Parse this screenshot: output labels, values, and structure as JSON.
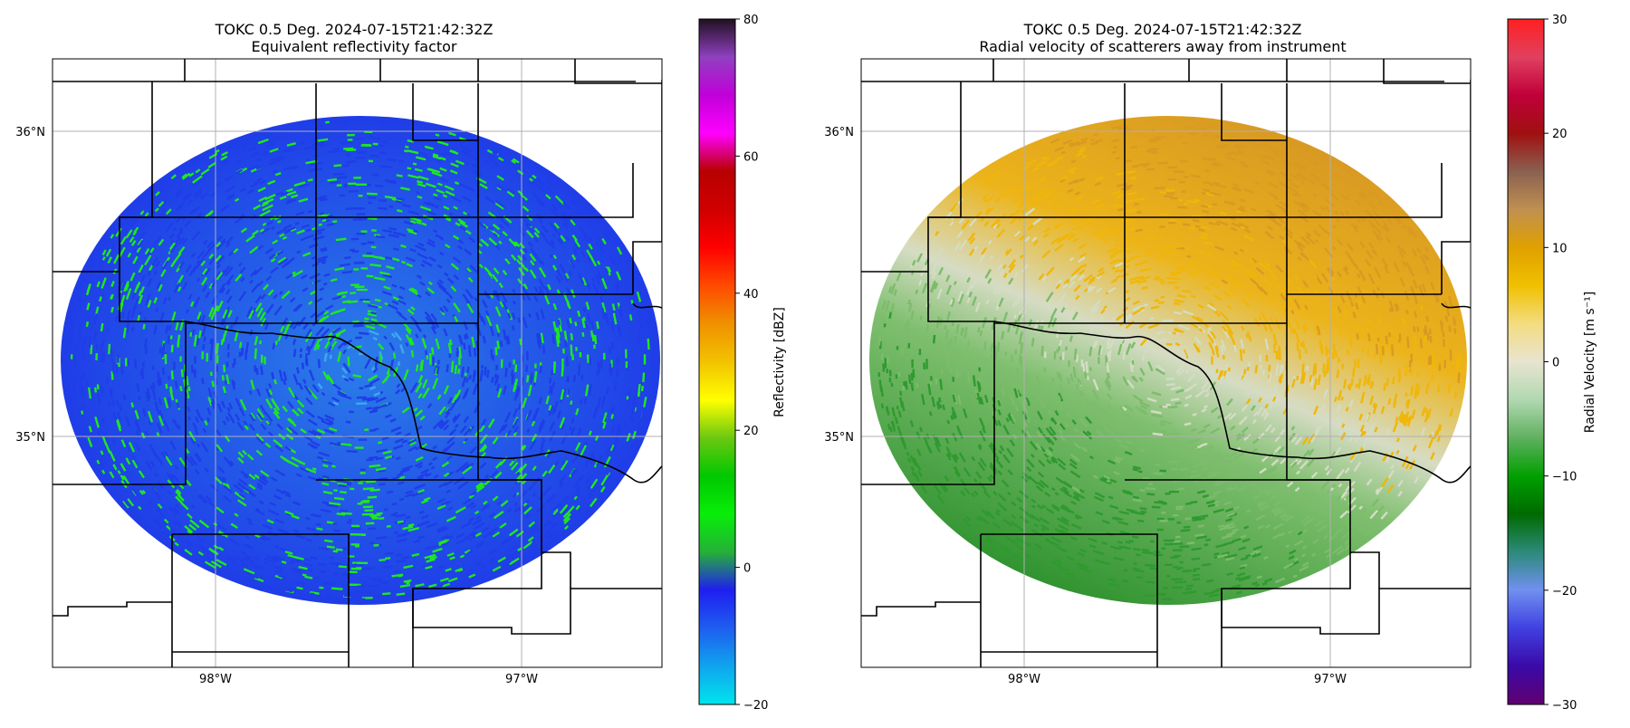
{
  "figure": {
    "left_panel": {
      "title_line1": "TOKC 0.5 Deg. 2024-07-15T21:42:32Z",
      "title_line2": "Equivalent reflectivity factor",
      "lat_labels": [
        "36°N",
        "35°N"
      ],
      "lon_labels": [
        "98°W",
        "97°W"
      ],
      "field": "reflectivity",
      "colorbar": {
        "label": "Reflectivity [dBZ]",
        "range": [
          -20,
          80
        ],
        "tick_values": [
          80,
          60,
          40,
          20,
          0,
          -20
        ],
        "tick_labels": [
          "80",
          "60",
          "40",
          "20",
          "0",
          "−20"
        ],
        "colors": [
          "#00e5ee",
          "#0fa4ee",
          "#1e5ef0",
          "#1f1ef0",
          "#25b038",
          "#08ee08",
          "#00c800",
          "#6cc810",
          "#ffff00",
          "#f2c200",
          "#f09000",
          "#ff4a00",
          "#ff0000",
          "#d00000",
          "#b80000",
          "#ff00ff",
          "#c000d8",
          "#9040c0",
          "#201020"
        ]
      }
    },
    "right_panel": {
      "title_line1": "TOKC 0.5 Deg. 2024-07-15T21:42:32Z",
      "title_line2": "Radial velocity of scatterers away from instrument",
      "lat_labels": [
        "36°N",
        "35°N"
      ],
      "lon_labels": [
        "98°W",
        "97°W"
      ],
      "field": "velocity",
      "colorbar": {
        "label": "Radial Velocity [m s⁻¹]",
        "range": [
          -30,
          30
        ],
        "tick_values": [
          30,
          20,
          10,
          0,
          -10,
          -20,
          -30
        ],
        "tick_labels": [
          "30",
          "20",
          "10",
          "0",
          "−10",
          "−20",
          "−30"
        ],
        "colors": [
          "#600070",
          "#3a0aa8",
          "#4040e0",
          "#7090f0",
          "#2d8a7a",
          "#006a00",
          "#00a000",
          "#60b060",
          "#b0d8b0",
          "#e8e4d0",
          "#f4dc80",
          "#f0c000",
          "#e0a000",
          "#c09050",
          "#8a6050",
          "#a01010",
          "#c0003a",
          "#e04060",
          "#ff2020"
        ]
      }
    },
    "colors": {
      "refl_blue": "#1f3de8",
      "refl_green": "#1ee81e",
      "vel_yellow": "#f0b60a",
      "vel_orange": "#d99a22",
      "vel_pale": "#d4dcc4",
      "vel_green": "#2f9a2f"
    }
  }
}
